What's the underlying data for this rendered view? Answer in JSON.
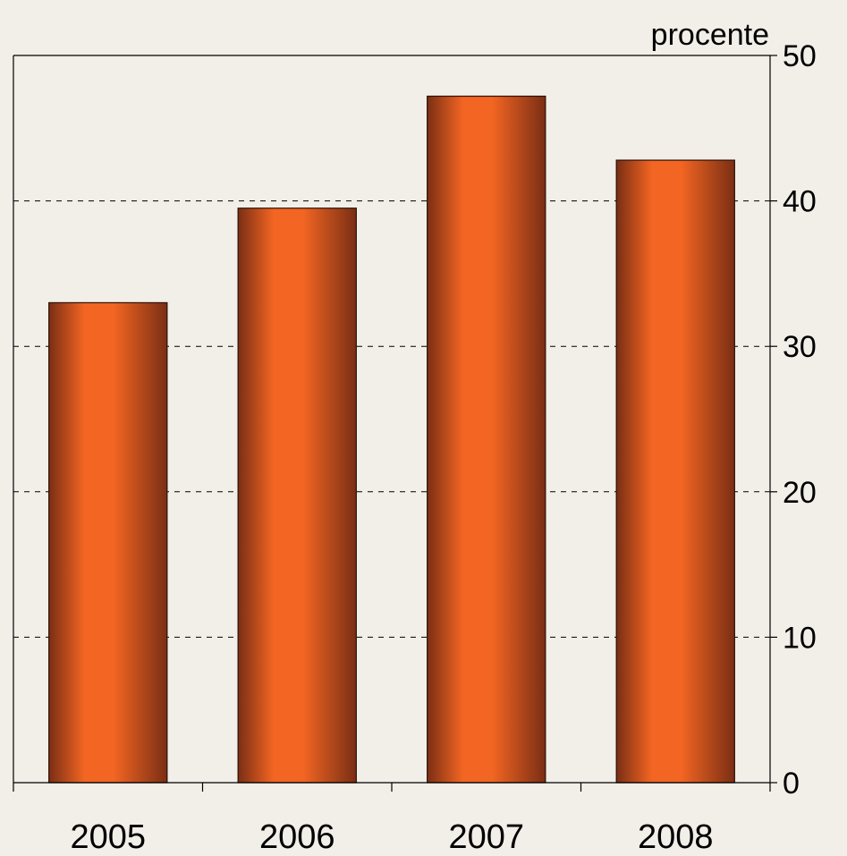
{
  "chart_data": {
    "type": "bar",
    "categories": [
      "2005",
      "2006",
      "2007",
      "2008"
    ],
    "values": [
      33,
      39.5,
      47.2,
      42.8
    ],
    "ylabel": "procente",
    "ylim": [
      0,
      50
    ],
    "yticks": [
      0,
      10,
      20,
      30,
      40,
      50
    ],
    "y_axis_side": "right",
    "grid": "dashed horizontal",
    "legend": "none",
    "colors": {
      "background": "#f2eee8",
      "bar_center": "#f26522",
      "bar_edge": "#7a2e14",
      "axis": "#000000",
      "grid": "#000000"
    }
  }
}
